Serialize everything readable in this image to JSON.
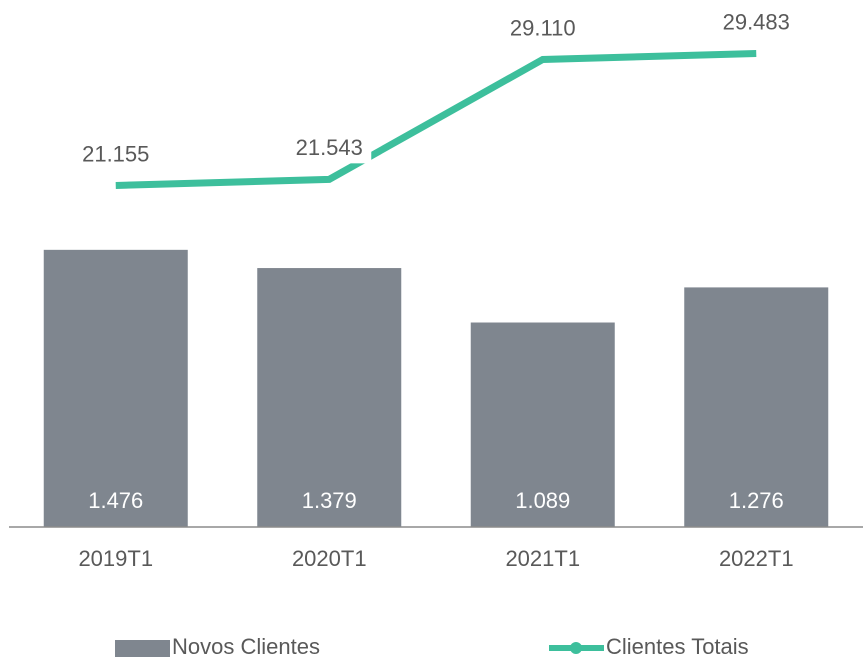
{
  "chart_data": {
    "type": "bar_line",
    "categories": [
      "2019T1",
      "2020T1",
      "2021T1",
      "2022T1"
    ],
    "series": [
      {
        "name": "Novos Clientes",
        "type": "bar",
        "color": "#7f868f",
        "values": [
          1476,
          1379,
          1089,
          1276
        ],
        "value_labels": [
          "1.476",
          "1.379",
          "1.089",
          "1.276"
        ]
      },
      {
        "name": "Clientes Totais",
        "type": "line",
        "axis": "y2",
        "color": "#3dbf9c",
        "values": [
          21155,
          21543,
          29110,
          29483
        ],
        "value_labels": [
          "21.155",
          "21.543",
          "29.110",
          "29.483"
        ]
      }
    ],
    "ylim": [
      0,
      2700
    ],
    "y2lim": [
      -400,
      31600
    ],
    "legend": "bottom"
  }
}
